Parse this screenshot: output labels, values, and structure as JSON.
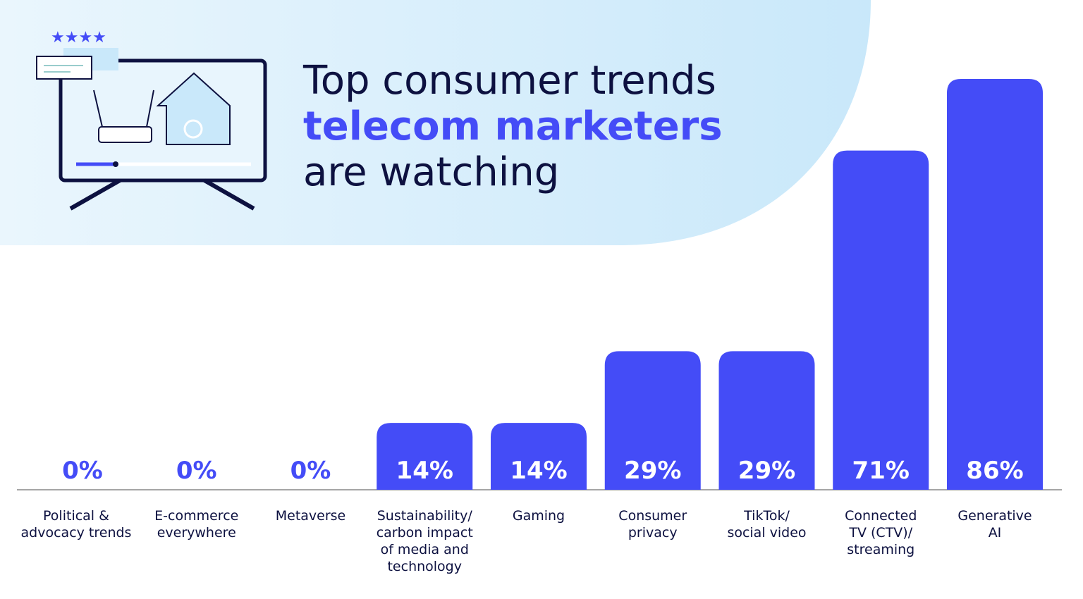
{
  "chart_data": {
    "type": "bar",
    "title_lines": [
      "Top consumer trends",
      "telecom marketers",
      "are watching"
    ],
    "categories": [
      "Political &\nadvocacy trends",
      "E-commerce\neverywhere",
      "Metaverse",
      "Sustainability/\ncarbon impact\nof media and\ntechnology",
      "Gaming",
      "Consumer\nprivacy",
      "TikTok/\nsocial video",
      "Connected\nTV (CTV)/\nstreaming",
      "Generative\nAI"
    ],
    "values": [
      0,
      0,
      0,
      14,
      14,
      29,
      29,
      71,
      86
    ],
    "value_labels": [
      "0%",
      "0%",
      "0%",
      "14%",
      "14%",
      "29%",
      "29%",
      "71%",
      "86%"
    ],
    "color": "#444cf7"
  }
}
